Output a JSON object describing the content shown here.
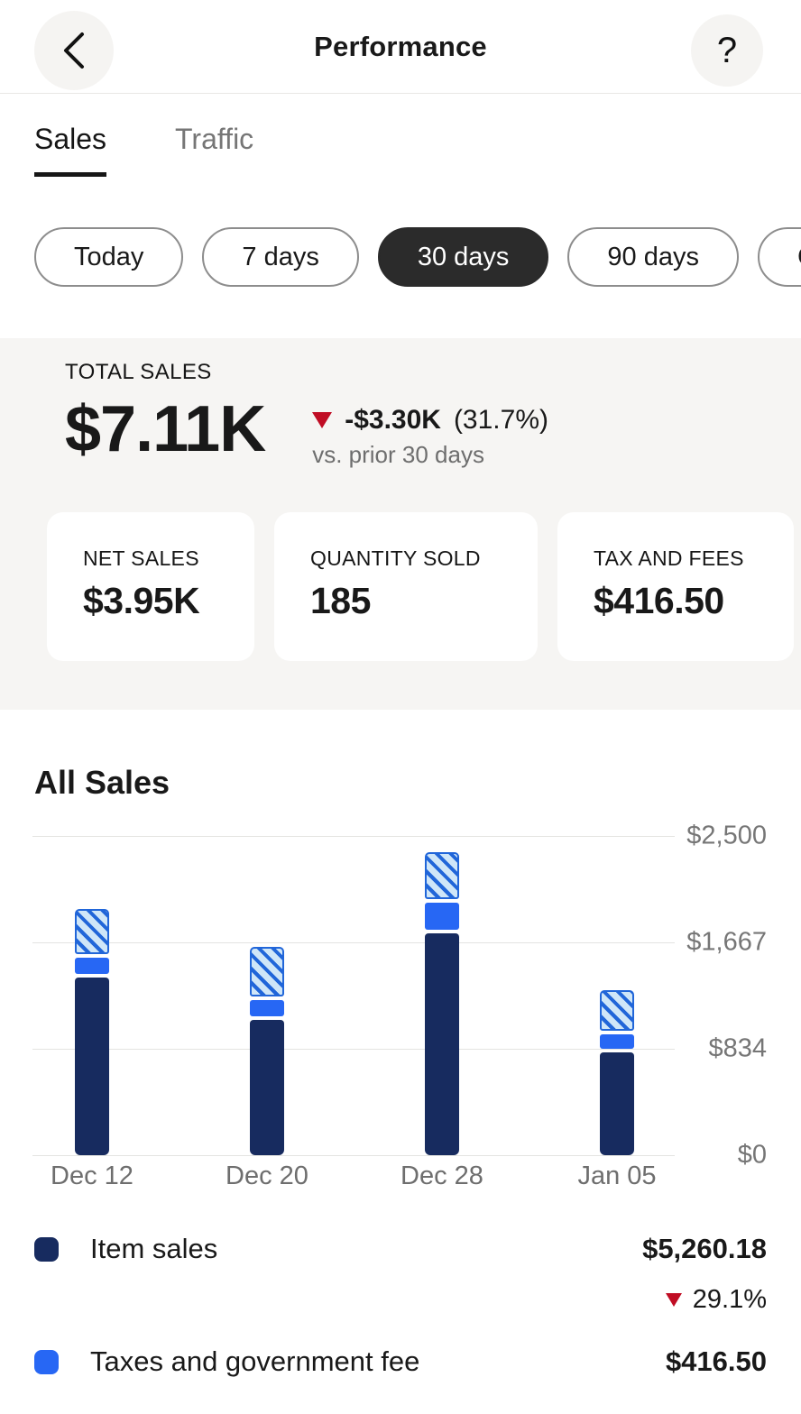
{
  "header": {
    "title": "Performance",
    "help_glyph": "?"
  },
  "tabs": {
    "items": [
      {
        "label": "Sales",
        "active": true
      },
      {
        "label": "Traffic",
        "active": false
      }
    ]
  },
  "filters": {
    "items": [
      {
        "label": "Today",
        "selected": false
      },
      {
        "label": "7 days",
        "selected": false
      },
      {
        "label": "30 days",
        "selected": true
      },
      {
        "label": "90 days",
        "selected": false
      },
      {
        "label": "C",
        "selected": false,
        "cut_off_at_screen_edge": true
      }
    ]
  },
  "summary": {
    "label": "TOTAL SALES",
    "value": "$7.11K",
    "delta": "-$3.30K",
    "delta_pct": "(31.7%)",
    "delta_direction": "down",
    "compare_note": "vs. prior 30 days"
  },
  "stat_cards": [
    {
      "label": "NET SALES",
      "value": "$3.95K"
    },
    {
      "label": "QUANTITY SOLD",
      "value": "185"
    },
    {
      "label": "TAX AND FEES",
      "value": "$416.50"
    }
  ],
  "section": {
    "title": "All Sales"
  },
  "chart_data": {
    "type": "bar",
    "stacked": true,
    "title": "All Sales",
    "xlabel": "",
    "ylabel": "",
    "categories": [
      "Dec 12",
      "Dec 20",
      "Dec 28",
      "Jan 05"
    ],
    "series": [
      {
        "name": "Item sales",
        "color": "#172b5f",
        "values": [
          1390,
          1060,
          1740,
          805
        ]
      },
      {
        "name": "Taxes and government fee",
        "color": "#2767f4",
        "values": [
          130,
          125,
          210,
          110
        ]
      },
      {
        "name": "(unlabeled hatched segment)",
        "pattern": "diagonal-hatch",
        "fill_color": "#cfe6f8",
        "stripe_color": "#2166d9",
        "values": [
          350,
          385,
          365,
          320
        ]
      }
    ],
    "ylim": [
      0,
      2500
    ],
    "y_ticks": [
      "$2,500",
      "$1,667",
      "$834",
      "$0"
    ],
    "grid": true,
    "legend_position": "bottom"
  },
  "legend": {
    "rows": [
      {
        "name": "Item sales",
        "swatch_color": "#172b5f",
        "value": "$5,260.18",
        "change": "29.1%",
        "change_direction": "down"
      },
      {
        "name": "Taxes and government fee",
        "swatch_color": "#2767f4",
        "value": "$416.50"
      }
    ]
  },
  "colors": {
    "accent_blue": "#2767f4",
    "navy": "#172b5f",
    "negative_red": "#c00d24",
    "selected_pill_bg": "#2b2b2b",
    "panel_bg": "#f6f5f3"
  }
}
